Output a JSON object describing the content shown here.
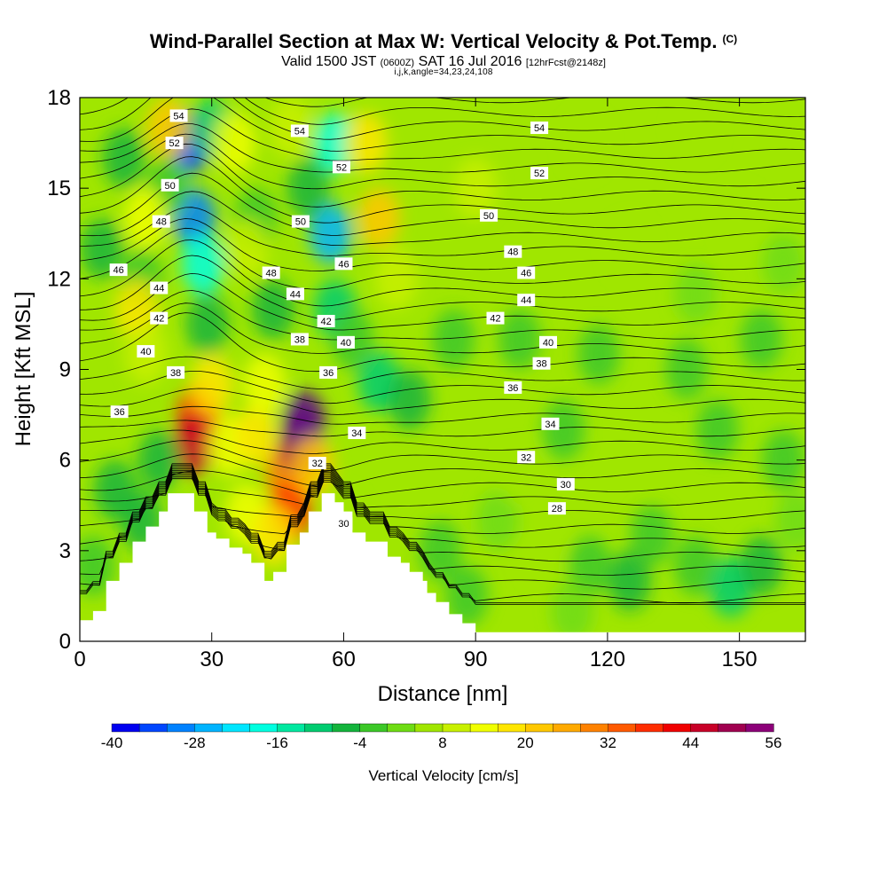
{
  "header": {
    "title": "Wind-Parallel Section at Max W: Vertical Velocity & Pot.Temp.",
    "copyright": "(C)",
    "subtitle_valid": "Valid 1500 JST",
    "subtitle_utc": "(0600Z)",
    "subtitle_date": "SAT 16 Jul 2016",
    "subtitle_fcst": "[12hrFcst@2148z]",
    "params": "i,j,k,angle=34,23,24,108"
  },
  "chart_data": {
    "type": "heatmap",
    "title": "Wind-Parallel Section at Max W: Vertical Velocity & Pot.Temp.",
    "xlabel": "Distance [nm]",
    "ylabel": "Height [Kft MSL]",
    "xlim": [
      0,
      165
    ],
    "ylim": [
      0,
      18
    ],
    "x_ticks": [
      0,
      30,
      60,
      90,
      120,
      150
    ],
    "y_ticks": [
      0,
      3,
      6,
      9,
      12,
      15,
      18
    ],
    "colorbar": {
      "label": "Vertical Velocity [cm/s]",
      "levels": [
        -40,
        -36,
        -32,
        -28,
        -24,
        -20,
        -16,
        -12,
        -8,
        -4,
        0,
        4,
        8,
        12,
        16,
        20,
        24,
        28,
        32,
        36,
        40,
        44,
        48,
        52,
        56
      ],
      "tick_labels": [
        -40,
        -28,
        -16,
        -4,
        8,
        20,
        32,
        44,
        56
      ],
      "colors": [
        "#0000f0",
        "#0046ff",
        "#0082ff",
        "#00b4ff",
        "#00e6ff",
        "#00ffe0",
        "#00e8a0",
        "#00cc70",
        "#14b43c",
        "#3cc828",
        "#6edc14",
        "#a0e600",
        "#c8f000",
        "#f0ff00",
        "#ffe600",
        "#ffc800",
        "#ffaa00",
        "#ff8200",
        "#ff5a00",
        "#ff2d00",
        "#f00000",
        "#c80028",
        "#a00050",
        "#8c0078",
        "#5a008c"
      ]
    },
    "background_class": "#a0e600",
    "velocity_cells": [
      {
        "x": 25,
        "y": 16.5,
        "w": -34
      },
      {
        "x": 26,
        "y": 14,
        "w": -30
      },
      {
        "x": 28,
        "y": 12.5,
        "w": -18
      },
      {
        "x": 29,
        "y": 10.5,
        "w": -8
      },
      {
        "x": 20,
        "y": 15,
        "w": -4
      },
      {
        "x": 30,
        "y": 17,
        "w": -10
      },
      {
        "x": 10,
        "y": 16,
        "w": -6
      },
      {
        "x": 5,
        "y": 13,
        "w": -8
      },
      {
        "x": 14,
        "y": 12,
        "w": -4
      },
      {
        "x": 58,
        "y": 16.5,
        "w": -20
      },
      {
        "x": 57,
        "y": 13.5,
        "w": -26
      },
      {
        "x": 58,
        "y": 11,
        "w": -12
      },
      {
        "x": 52,
        "y": 15,
        "w": -6
      },
      {
        "x": 62,
        "y": 10,
        "w": -4
      },
      {
        "x": 68,
        "y": 8.6,
        "w": -10
      },
      {
        "x": 75,
        "y": 8,
        "w": -6
      },
      {
        "x": 40,
        "y": 14,
        "w": -4
      },
      {
        "x": 44,
        "y": 11,
        "w": -6
      },
      {
        "x": 20,
        "y": 17,
        "w": 20
      },
      {
        "x": 15,
        "y": 14,
        "w": 12
      },
      {
        "x": 13,
        "y": 11,
        "w": 16
      },
      {
        "x": 15,
        "y": 9.5,
        "w": 8
      },
      {
        "x": 35,
        "y": 16.5,
        "w": 12
      },
      {
        "x": 38,
        "y": 13,
        "w": 8
      },
      {
        "x": 65,
        "y": 16.5,
        "w": 16
      },
      {
        "x": 68,
        "y": 14,
        "w": 20
      },
      {
        "x": 72,
        "y": 12,
        "w": 8
      },
      {
        "x": 48,
        "y": 17,
        "w": 8
      },
      {
        "x": 27,
        "y": 7.5,
        "w": 36
      },
      {
        "x": 26,
        "y": 6.5,
        "w": 44
      },
      {
        "x": 30,
        "y": 8.5,
        "w": 16
      },
      {
        "x": 34,
        "y": 6.5,
        "w": 12
      },
      {
        "x": 40,
        "y": 6.8,
        "w": 16
      },
      {
        "x": 42,
        "y": 8.5,
        "w": 12
      },
      {
        "x": 47,
        "y": 5.5,
        "w": 28
      },
      {
        "x": 48,
        "y": 4.3,
        "w": 36
      },
      {
        "x": 50,
        "y": 6.5,
        "w": 48
      },
      {
        "x": 51,
        "y": 7.3,
        "w": 56
      },
      {
        "x": 53,
        "y": 5.8,
        "w": 20
      },
      {
        "x": 38,
        "y": 4.2,
        "w": 12
      },
      {
        "x": 44,
        "y": 3.5,
        "w": 16
      },
      {
        "x": 60,
        "y": 4,
        "w": 4
      },
      {
        "x": 8,
        "y": 5,
        "w": -8
      },
      {
        "x": 14,
        "y": 4,
        "w": -6
      },
      {
        "x": 3,
        "y": 2.5,
        "w": -4
      },
      {
        "x": 18,
        "y": 6,
        "w": -6
      },
      {
        "x": 90,
        "y": 15,
        "w": 8
      },
      {
        "x": 85,
        "y": 10,
        "w": -4
      },
      {
        "x": 100,
        "y": 10,
        "w": -4
      },
      {
        "x": 118,
        "y": 9.5,
        "w": -4
      },
      {
        "x": 138,
        "y": 9,
        "w": -4
      },
      {
        "x": 155,
        "y": 10,
        "w": -4
      },
      {
        "x": 110,
        "y": 7,
        "w": -4
      },
      {
        "x": 145,
        "y": 7,
        "w": -4
      },
      {
        "x": 160,
        "y": 6,
        "w": -4
      },
      {
        "x": 125,
        "y": 13,
        "w": 4
      },
      {
        "x": 150,
        "y": 14,
        "w": 4
      },
      {
        "x": 115,
        "y": 16.5,
        "w": 4
      },
      {
        "x": 140,
        "y": 17,
        "w": 4
      },
      {
        "x": 160,
        "y": 12.5,
        "w": 0
      },
      {
        "x": 140,
        "y": 11.5,
        "w": 0
      },
      {
        "x": 95,
        "y": 4,
        "w": 0
      },
      {
        "x": 105,
        "y": 3,
        "w": 4
      },
      {
        "x": 116,
        "y": 2.5,
        "w": -4
      },
      {
        "x": 125,
        "y": 2,
        "w": -8
      },
      {
        "x": 130,
        "y": 3.5,
        "w": -4
      },
      {
        "x": 140,
        "y": 2.5,
        "w": -4
      },
      {
        "x": 148,
        "y": 1.8,
        "w": -12
      },
      {
        "x": 155,
        "y": 2.5,
        "w": -6
      },
      {
        "x": 163,
        "y": 4,
        "w": 0
      },
      {
        "x": 88,
        "y": 1.5,
        "w": -4
      },
      {
        "x": 82,
        "y": 3,
        "w": -4
      },
      {
        "x": 112,
        "y": 1,
        "w": 0
      },
      {
        "x": 100,
        "y": 5.5,
        "w": 4
      }
    ],
    "terrain": [
      {
        "x": 0,
        "h": 0.7
      },
      {
        "x": 3,
        "h": 1
      },
      {
        "x": 6,
        "h": 2
      },
      {
        "x": 9,
        "h": 2.6
      },
      {
        "x": 12,
        "h": 3.3
      },
      {
        "x": 15,
        "h": 3.8
      },
      {
        "x": 18,
        "h": 4.3
      },
      {
        "x": 20,
        "h": 4.9
      },
      {
        "x": 24,
        "h": 4.9
      },
      {
        "x": 26,
        "h": 4.3
      },
      {
        "x": 29,
        "h": 3.6
      },
      {
        "x": 31,
        "h": 3.4
      },
      {
        "x": 34,
        "h": 3.1
      },
      {
        "x": 37,
        "h": 2.9
      },
      {
        "x": 39,
        "h": 2.6
      },
      {
        "x": 42,
        "h": 2
      },
      {
        "x": 44,
        "h": 2.3
      },
      {
        "x": 47,
        "h": 3.2
      },
      {
        "x": 50,
        "h": 3.6
      },
      {
        "x": 52,
        "h": 4.3
      },
      {
        "x": 55,
        "h": 4.9
      },
      {
        "x": 58,
        "h": 4.6
      },
      {
        "x": 60,
        "h": 4.3
      },
      {
        "x": 62,
        "h": 3.6
      },
      {
        "x": 65,
        "h": 3.3
      },
      {
        "x": 70,
        "h": 2.8
      },
      {
        "x": 73,
        "h": 2.6
      },
      {
        "x": 75,
        "h": 2.3
      },
      {
        "x": 78,
        "h": 2
      },
      {
        "x": 79,
        "h": 1.6
      },
      {
        "x": 81,
        "h": 1.3
      },
      {
        "x": 84,
        "h": 0.9
      },
      {
        "x": 87,
        "h": 0.6
      },
      {
        "x": 90,
        "h": 0.3
      },
      {
        "x": 93,
        "h": 0.3
      },
      {
        "x": 165,
        "h": 0.3
      }
    ],
    "theta_labels": [
      {
        "v": "54",
        "x": 22.5,
        "y": 17.4
      },
      {
        "v": "52",
        "x": 21.5,
        "y": 16.5
      },
      {
        "v": "50",
        "x": 20.5,
        "y": 15.1
      },
      {
        "v": "48",
        "x": 18.5,
        "y": 13.9
      },
      {
        "v": "46",
        "x": 8.8,
        "y": 12.3
      },
      {
        "v": "44",
        "x": 18,
        "y": 11.7
      },
      {
        "v": "42",
        "x": 18,
        "y": 10.7
      },
      {
        "v": "40",
        "x": 15,
        "y": 9.6
      },
      {
        "v": "38",
        "x": 21.8,
        "y": 8.9
      },
      {
        "v": "36",
        "x": 9,
        "y": 7.6
      },
      {
        "v": "54",
        "x": 50,
        "y": 16.9
      },
      {
        "v": "52",
        "x": 59.5,
        "y": 15.7
      },
      {
        "v": "50",
        "x": 50.2,
        "y": 13.9
      },
      {
        "v": "48",
        "x": 43.5,
        "y": 12.2
      },
      {
        "v": "46",
        "x": 60,
        "y": 12.5
      },
      {
        "v": "44",
        "x": 49,
        "y": 11.5
      },
      {
        "v": "42",
        "x": 56,
        "y": 10.6
      },
      {
        "v": "40",
        "x": 60.5,
        "y": 9.9
      },
      {
        "v": "38",
        "x": 50,
        "y": 10
      },
      {
        "v": "36",
        "x": 56.5,
        "y": 8.9
      },
      {
        "v": "34",
        "x": 63,
        "y": 6.9
      },
      {
        "v": "32",
        "x": 54,
        "y": 5.9
      },
      {
        "v": "30",
        "x": 60,
        "y": 3.9
      },
      {
        "v": "54",
        "x": 104.5,
        "y": 17.0
      },
      {
        "v": "52",
        "x": 104.5,
        "y": 15.5
      },
      {
        "v": "50",
        "x": 93,
        "y": 14.1
      },
      {
        "v": "48",
        "x": 98.5,
        "y": 12.9
      },
      {
        "v": "46",
        "x": 101.5,
        "y": 12.2
      },
      {
        "v": "44",
        "x": 101.5,
        "y": 11.3
      },
      {
        "v": "42",
        "x": 94.5,
        "y": 10.7
      },
      {
        "v": "40",
        "x": 106.5,
        "y": 9.9
      },
      {
        "v": "38",
        "x": 105,
        "y": 9.2
      },
      {
        "v": "36",
        "x": 98.5,
        "y": 8.4
      },
      {
        "v": "34",
        "x": 107,
        "y": 7.2
      },
      {
        "v": "32",
        "x": 101.5,
        "y": 6.1
      },
      {
        "v": "30",
        "x": 110.5,
        "y": 5.2
      },
      {
        "v": "28",
        "x": 108.5,
        "y": 4.4
      }
    ]
  }
}
